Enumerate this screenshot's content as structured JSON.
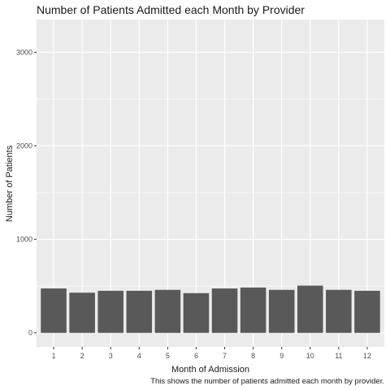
{
  "chart_data": {
    "type": "bar",
    "title": "Number of Patients Admitted each Month by Provider",
    "xlabel": "Month of Admission",
    "ylabel": "Number of Patients",
    "caption": "This shows the number of patients admitted each month by provider.",
    "categories": [
      "1",
      "2",
      "3",
      "4",
      "5",
      "6",
      "7",
      "8",
      "9",
      "10",
      "11",
      "12"
    ],
    "values": [
      475,
      430,
      450,
      450,
      460,
      425,
      475,
      485,
      460,
      505,
      460,
      450
    ],
    "y_ticks": [
      0,
      1000,
      2000,
      3000
    ],
    "ylim": [
      -150,
      3350
    ],
    "grid": true,
    "legend": "none",
    "colors": {
      "panel_background": "#ebebeb",
      "grid_line": "#ffffff",
      "bar_fill": "#595959",
      "text": "#1a1a1a",
      "tick_text": "#4d4d4d",
      "tick_mark": "#333333"
    }
  }
}
